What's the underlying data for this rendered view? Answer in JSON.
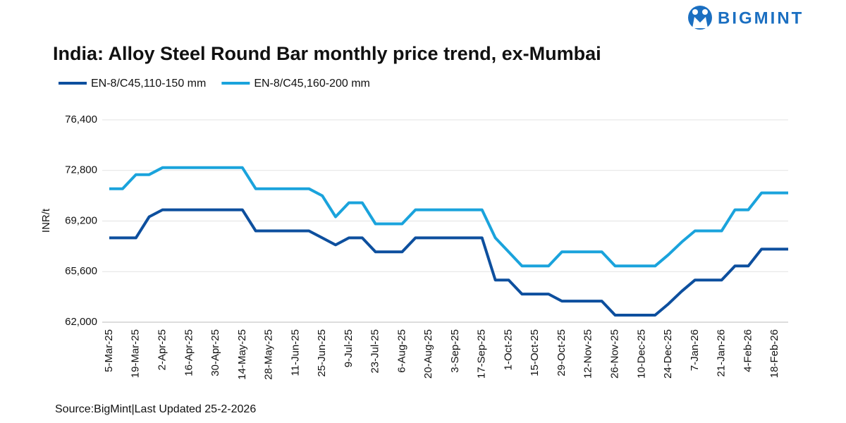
{
  "brand": "BIGMINT",
  "chart_data": {
    "type": "line",
    "title": "India: Alloy Steel Round Bar monthly price trend, ex-Mumbai",
    "y_label": "INR/t",
    "source": "Source:BigMint|Last Updated 25-2-2026",
    "categories": [
      "5-Mar-25",
      null,
      "19-Mar-25",
      null,
      "2-Apr-25",
      null,
      "16-Apr-25",
      null,
      "30-Apr-25",
      null,
      "14-May-25",
      null,
      "28-May-25",
      null,
      "11-Jun-25",
      null,
      "25-Jun-25",
      null,
      "9-Jul-25",
      null,
      "23-Jul-25",
      null,
      "6-Aug-25",
      null,
      "20-Aug-25",
      null,
      "3-Sep-25",
      null,
      "17-Sep-25",
      null,
      "1-Oct-25",
      null,
      "15-Oct-25",
      null,
      "29-Oct-25",
      null,
      "12-Nov-25",
      null,
      "26-Nov-25",
      null,
      "10-Dec-25",
      null,
      "24-Dec-25",
      null,
      "7-Jan-26",
      null,
      "21-Jan-26",
      null,
      "4-Feb-26",
      null,
      "18-Feb-26",
      null
    ],
    "series": [
      {
        "name": "EN-8/C45,110-150 mm",
        "color": "#0d4f9e",
        "values": [
          68000,
          68000,
          68000,
          69500,
          70000,
          70000,
          70000,
          70000,
          70000,
          70000,
          70000,
          68500,
          68500,
          68500,
          68500,
          68500,
          68000,
          67500,
          68000,
          68000,
          67000,
          67000,
          67000,
          68000,
          68000,
          68000,
          68000,
          68000,
          68000,
          65000,
          65000,
          64000,
          64000,
          64000,
          63500,
          63500,
          63500,
          63500,
          62500,
          62500,
          62500,
          62500,
          63300,
          64200,
          65000,
          65000,
          65000,
          66000,
          66000,
          67200,
          67200,
          67200
        ]
      },
      {
        "name": "EN-8/C45,160-200 mm",
        "color": "#1aa3dc",
        "values": [
          71500,
          71500,
          72500,
          72500,
          73000,
          73000,
          73000,
          73000,
          73000,
          73000,
          73000,
          71500,
          71500,
          71500,
          71500,
          71500,
          71000,
          69500,
          70500,
          70500,
          69000,
          69000,
          69000,
          70000,
          70000,
          70000,
          70000,
          70000,
          70000,
          68000,
          67000,
          66000,
          66000,
          66000,
          67000,
          67000,
          67000,
          67000,
          66000,
          66000,
          66000,
          66000,
          66800,
          67700,
          68500,
          68500,
          68500,
          70000,
          70000,
          71200,
          71200,
          71200
        ]
      }
    ],
    "ylim": [
      62000,
      76400
    ],
    "yticks": [
      {
        "value": 62000,
        "label": "62,000"
      },
      {
        "value": 65600,
        "label": "65,600"
      },
      {
        "value": 69200,
        "label": "69,200"
      },
      {
        "value": 72800,
        "label": "72,800"
      },
      {
        "value": 76400,
        "label": "76,400"
      }
    ],
    "grid": true,
    "legend": "top-left"
  }
}
